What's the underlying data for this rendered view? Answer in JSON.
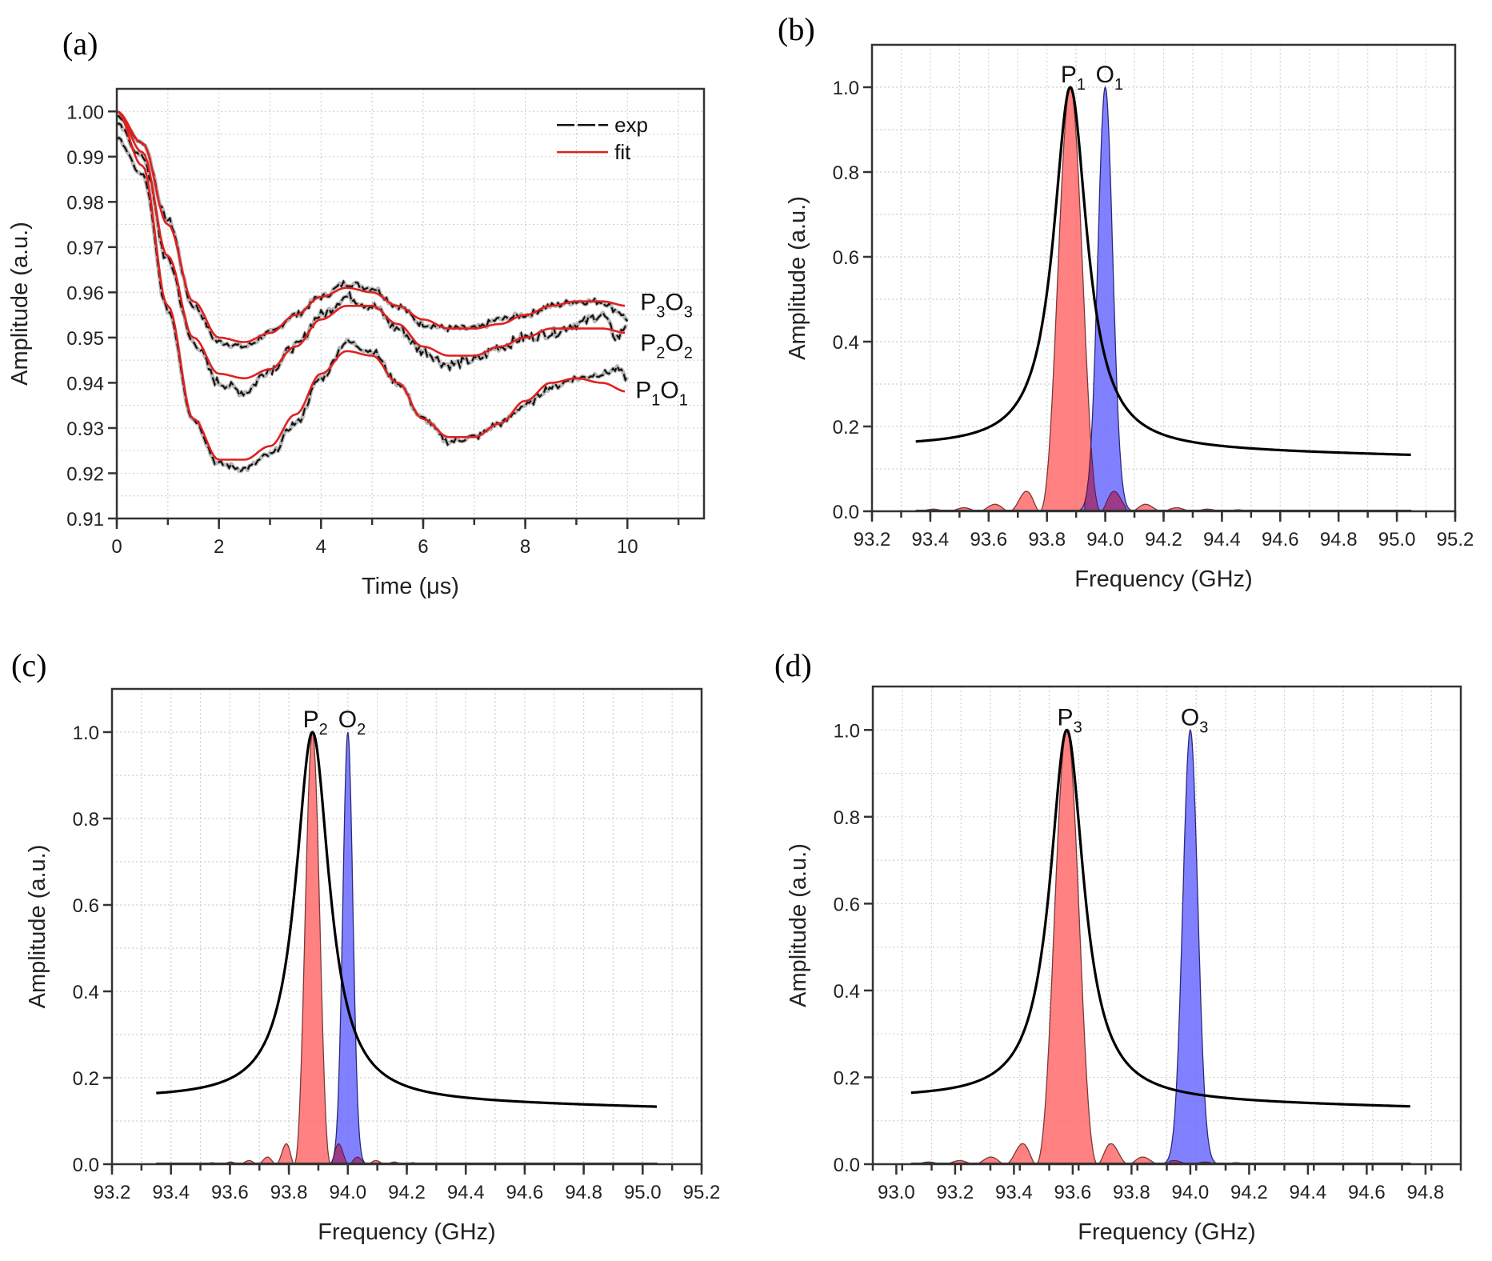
{
  "figure": {
    "panels": [
      {
        "id": "a",
        "label": "(a)"
      },
      {
        "id": "b",
        "label": "(b)"
      },
      {
        "id": "c",
        "label": "(c)"
      },
      {
        "id": "d",
        "label": "(d)"
      }
    ]
  },
  "colors": {
    "exp": "#111111",
    "fit": "#e02020",
    "p_fill": "#ff6b6b",
    "o_fill": "#6b6bff",
    "envelope": "#000000"
  },
  "chart_data": [
    {
      "id": "a",
      "type": "line",
      "panel_label": "(a)",
      "xlabel": "Time (μs)",
      "ylabel": "Amplitude (a.u.)",
      "xlim": [
        0,
        11.5
      ],
      "ylim": [
        0.91,
        1.005
      ],
      "xticks": [
        0,
        2,
        4,
        6,
        8,
        10
      ],
      "xtick_labels": [
        "0",
        "2",
        "4",
        "6",
        "8",
        "10"
      ],
      "yticks": [
        0.91,
        0.92,
        0.93,
        0.94,
        0.95,
        0.96,
        0.97,
        0.98,
        0.99,
        1.0
      ],
      "ytick_labels": [
        "0.91",
        "0.92",
        "0.93",
        "0.94",
        "0.95",
        "0.96",
        "0.97",
        "0.98",
        "0.99",
        "1.00"
      ],
      "grid": true,
      "legend": {
        "position": "top-right",
        "entries": [
          {
            "label": "exp",
            "style": "dashed-black"
          },
          {
            "label": "fit",
            "style": "solid-red"
          }
        ]
      },
      "series": [
        {
          "name": "P3O3",
          "label_main": [
            "P",
            "3",
            "O",
            "3"
          ],
          "fit": {
            "x": [
              0,
              0.5,
              1.0,
              1.5,
              2.0,
              2.5,
              3.0,
              3.5,
              4.0,
              4.5,
              5.0,
              5.5,
              6.0,
              6.5,
              7.0,
              7.5,
              8.0,
              8.5,
              9.0,
              9.5,
              10.0
            ],
            "y": [
              1.0,
              0.993,
              0.975,
              0.958,
              0.95,
              0.949,
              0.951,
              0.955,
              0.959,
              0.961,
              0.96,
              0.957,
              0.954,
              0.952,
              0.952,
              0.953,
              0.955,
              0.957,
              0.958,
              0.958,
              0.957
            ]
          },
          "exp": {
            "x": [
              0,
              0.5,
              1.0,
              1.5,
              2.0,
              2.5,
              3.0,
              3.5,
              4.0,
              4.5,
              5.0,
              5.5,
              6.0,
              6.5,
              7.0,
              7.5,
              8.0,
              8.5,
              9.0,
              9.5,
              9.8,
              10.0
            ],
            "y": [
              0.999,
              0.993,
              0.976,
              0.957,
              0.949,
              0.948,
              0.951,
              0.955,
              0.959,
              0.962,
              0.961,
              0.957,
              0.953,
              0.952,
              0.952,
              0.954,
              0.955,
              0.957,
              0.958,
              0.958,
              0.956,
              0.954
            ]
          }
        },
        {
          "name": "P2O2",
          "label_main": [
            "P",
            "2",
            "O",
            "2"
          ],
          "fit": {
            "x": [
              0,
              0.5,
              1.0,
              1.5,
              2.0,
              2.5,
              3.0,
              3.5,
              4.0,
              4.5,
              5.0,
              5.5,
              6.0,
              6.5,
              7.0,
              7.5,
              8.0,
              8.5,
              9.0,
              9.5,
              10.0
            ],
            "y": [
              1.0,
              0.991,
              0.968,
              0.95,
              0.942,
              0.941,
              0.943,
              0.948,
              0.954,
              0.957,
              0.957,
              0.953,
              0.948,
              0.946,
              0.946,
              0.948,
              0.95,
              0.952,
              0.952,
              0.952,
              0.951
            ]
          },
          "exp": {
            "x": [
              0,
              0.5,
              1.0,
              1.5,
              2.0,
              2.5,
              3.0,
              3.5,
              4.0,
              4.5,
              5.0,
              5.5,
              6.0,
              6.5,
              7.0,
              7.5,
              8.0,
              8.5,
              9.0,
              9.5,
              9.8,
              10.0
            ],
            "y": [
              0.997,
              0.99,
              0.967,
              0.949,
              0.94,
              0.938,
              0.943,
              0.948,
              0.955,
              0.959,
              0.957,
              0.952,
              0.947,
              0.944,
              0.945,
              0.948,
              0.95,
              0.951,
              0.953,
              0.955,
              0.95,
              0.953
            ]
          }
        },
        {
          "name": "P1O1",
          "label_main": [
            "P",
            "1",
            "O",
            "1"
          ],
          "fit": {
            "x": [
              0,
              0.5,
              1.0,
              1.5,
              2.0,
              2.5,
              3.0,
              3.5,
              4.0,
              4.5,
              5.0,
              5.5,
              6.0,
              6.5,
              7.0,
              7.5,
              8.0,
              8.5,
              9.0,
              9.5,
              10.0
            ],
            "y": [
              1.0,
              0.988,
              0.957,
              0.932,
              0.923,
              0.923,
              0.926,
              0.933,
              0.942,
              0.947,
              0.946,
              0.94,
              0.932,
              0.928,
              0.928,
              0.931,
              0.936,
              0.94,
              0.941,
              0.94,
              0.938
            ]
          },
          "exp": {
            "x": [
              0,
              0.5,
              1.0,
              1.5,
              2.0,
              2.5,
              3.0,
              3.5,
              4.0,
              4.5,
              5.0,
              5.5,
              6.0,
              6.5,
              7.0,
              7.5,
              8.0,
              8.5,
              9.0,
              9.5,
              9.8,
              10.0
            ],
            "y": [
              0.994,
              0.986,
              0.956,
              0.932,
              0.922,
              0.921,
              0.924,
              0.931,
              0.941,
              0.949,
              0.947,
              0.94,
              0.932,
              0.927,
              0.928,
              0.931,
              0.935,
              0.939,
              0.941,
              0.942,
              0.943,
              0.941
            ]
          }
        }
      ]
    },
    {
      "id": "b",
      "type": "area",
      "panel_label": "(b)",
      "xlabel": "Frequency (GHz)",
      "ylabel": "Amplitude (a.u.)",
      "xlim": [
        93.2,
        95.2
      ],
      "ylim": [
        0.0,
        1.1
      ],
      "xticks": [
        93.2,
        93.4,
        93.6,
        93.8,
        94.0,
        94.2,
        94.4,
        94.6,
        94.8,
        95.0,
        95.2
      ],
      "xtick_labels": [
        "93.2",
        "93.4",
        "93.6",
        "93.8",
        "94.0",
        "94.2",
        "94.4",
        "94.6",
        "94.8",
        "95.0",
        "95.2"
      ],
      "yticks": [
        0.0,
        0.2,
        0.4,
        0.6,
        0.8,
        1.0
      ],
      "ytick_labels": [
        "0.0",
        "0.2",
        "0.4",
        "0.6",
        "0.8",
        "1.0"
      ],
      "grid": true,
      "p_peak": {
        "label": "P",
        "sub": "1",
        "center": 93.88,
        "amplitude": 1.0,
        "sinc_width": 0.105,
        "sidelobe_range": [
          93.35,
          95.05
        ]
      },
      "o_peak": {
        "label": "O",
        "sub": "1",
        "center": 94.0,
        "amplitude": 1.0,
        "width": 0.045
      },
      "envelope": {
        "center": 93.88,
        "hwhm": 0.07,
        "base_left": 0.15,
        "base_right": 0.13,
        "x_range": [
          93.35,
          95.05
        ]
      }
    },
    {
      "id": "c",
      "type": "area",
      "panel_label": "(c)",
      "xlabel": "Frequency (GHz)",
      "ylabel": "Amplitude (a.u.)",
      "xlim": [
        93.2,
        95.2
      ],
      "ylim": [
        0.0,
        1.1
      ],
      "xticks": [
        93.2,
        93.4,
        93.6,
        93.8,
        94.0,
        94.2,
        94.4,
        94.6,
        94.8,
        95.0,
        95.2
      ],
      "xtick_labels": [
        "93.2",
        "93.4",
        "93.6",
        "93.8",
        "94.0",
        "94.2",
        "94.4",
        "94.6",
        "94.8",
        "95.0",
        "95.2"
      ],
      "yticks": [
        0.0,
        0.2,
        0.4,
        0.6,
        0.8,
        1.0
      ],
      "ytick_labels": [
        "0.0",
        "0.2",
        "0.4",
        "0.6",
        "0.8",
        "1.0"
      ],
      "grid": true,
      "p_peak": {
        "label": "P",
        "sub": "2",
        "center": 93.88,
        "amplitude": 1.0,
        "sinc_width": 0.062,
        "sidelobe_range": [
          93.35,
          95.05
        ]
      },
      "o_peak": {
        "label": "O",
        "sub": "2",
        "center": 94.0,
        "amplitude": 1.0,
        "width": 0.03
      },
      "envelope": {
        "center": 93.88,
        "hwhm": 0.07,
        "base_left": 0.15,
        "base_right": 0.13,
        "x_range": [
          93.35,
          95.05
        ]
      }
    },
    {
      "id": "d",
      "type": "area",
      "panel_label": "(d)",
      "xlabel": "Frequency (GHz)",
      "ylabel": "Amplitude (a.u.)",
      "xlim": [
        92.92,
        94.92
      ],
      "ylim": [
        0.0,
        1.1
      ],
      "xticks": [
        93.0,
        93.2,
        93.4,
        93.6,
        93.8,
        94.0,
        94.2,
        94.4,
        94.6,
        94.8
      ],
      "xtick_labels": [
        "93.0",
        "93.2",
        "93.4",
        "93.6",
        "93.8",
        "94.0",
        "94.2",
        "94.4",
        "94.6",
        "94.8"
      ],
      "yticks": [
        0.0,
        0.2,
        0.4,
        0.6,
        0.8,
        1.0
      ],
      "ytick_labels": [
        "0.0",
        "0.2",
        "0.4",
        "0.6",
        "0.8",
        "1.0"
      ],
      "grid": true,
      "p_peak": {
        "label": "P",
        "sub": "3",
        "center": 93.58,
        "amplitude": 1.0,
        "sinc_width": 0.105,
        "sidelobe_range": [
          93.05,
          94.75
        ]
      },
      "o_peak": {
        "label": "O",
        "sub": "3",
        "center": 94.0,
        "amplitude": 1.0,
        "width": 0.045
      },
      "envelope": {
        "center": 93.58,
        "hwhm": 0.07,
        "base_left": 0.15,
        "base_right": 0.13,
        "x_range": [
          93.05,
          94.75
        ]
      }
    }
  ]
}
